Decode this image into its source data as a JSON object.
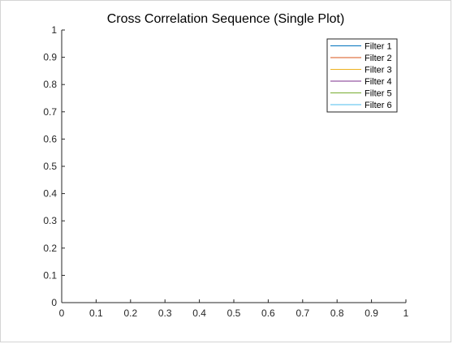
{
  "chart_data": {
    "type": "line",
    "title": "Cross Correlation Sequence (Single Plot)",
    "xlabel": "",
    "ylabel": "",
    "xlim": [
      0,
      1
    ],
    "ylim": [
      0,
      1
    ],
    "xticks": [
      "0",
      "0.1",
      "0.2",
      "0.3",
      "0.4",
      "0.5",
      "0.6",
      "0.7",
      "0.8",
      "0.9",
      "1"
    ],
    "yticks": [
      "0",
      "0.1",
      "0.2",
      "0.3",
      "0.4",
      "0.5",
      "0.6",
      "0.7",
      "0.8",
      "0.9",
      "1"
    ],
    "grid": false,
    "legend_position": "top-right",
    "series": [
      {
        "name": "Filter 1",
        "color": "#0072BD",
        "x": [],
        "y": []
      },
      {
        "name": "Filter 2",
        "color": "#D95319",
        "x": [],
        "y": []
      },
      {
        "name": "Filter 3",
        "color": "#EDB120",
        "x": [],
        "y": []
      },
      {
        "name": "Filter 4",
        "color": "#7E2F8E",
        "x": [],
        "y": []
      },
      {
        "name": "Filter 5",
        "color": "#77AC30",
        "x": [],
        "y": []
      },
      {
        "name": "Filter 6",
        "color": "#4DBEEE",
        "x": [],
        "y": []
      }
    ]
  }
}
